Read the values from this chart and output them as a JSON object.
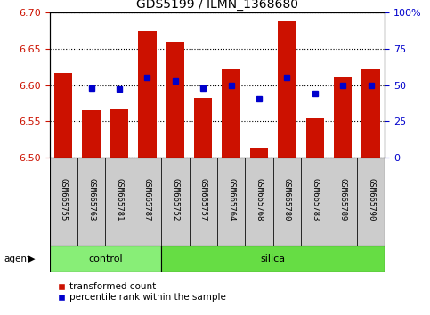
{
  "title": "GDS5199 / ILMN_1368680",
  "samples": [
    "GSM665755",
    "GSM665763",
    "GSM665781",
    "GSM665787",
    "GSM665752",
    "GSM665757",
    "GSM665764",
    "GSM665768",
    "GSM665780",
    "GSM665783",
    "GSM665789",
    "GSM665790"
  ],
  "groups": [
    "control",
    "control",
    "control",
    "control",
    "silica",
    "silica",
    "silica",
    "silica",
    "silica",
    "silica",
    "silica",
    "silica"
  ],
  "red_values": [
    6.617,
    6.565,
    6.567,
    6.675,
    6.66,
    6.582,
    6.622,
    6.514,
    6.688,
    6.554,
    6.61,
    6.623
  ],
  "blue_values": [
    null,
    6.596,
    6.594,
    6.61,
    6.606,
    6.596,
    6.6,
    6.581,
    6.61,
    6.588,
    6.6,
    6.6
  ],
  "ylim": [
    6.5,
    6.7
  ],
  "yticks_left": [
    6.5,
    6.55,
    6.6,
    6.65,
    6.7
  ],
  "yticks_right_labels": [
    "0",
    "25",
    "50",
    "75",
    "100%"
  ],
  "yticks_right_vals": [
    6.5,
    6.55,
    6.6,
    6.65,
    6.7
  ],
  "red_color": "#CC1100",
  "blue_color": "#0000CC",
  "control_color": "#88EE77",
  "silica_color": "#66DD44",
  "bar_bg_color": "#CCCCCC",
  "legend_red": "transformed count",
  "legend_blue": "percentile rank within the sample",
  "agent_label": "agent",
  "bar_width": 0.65,
  "figsize": [
    4.83,
    3.54
  ],
  "dpi": 100
}
